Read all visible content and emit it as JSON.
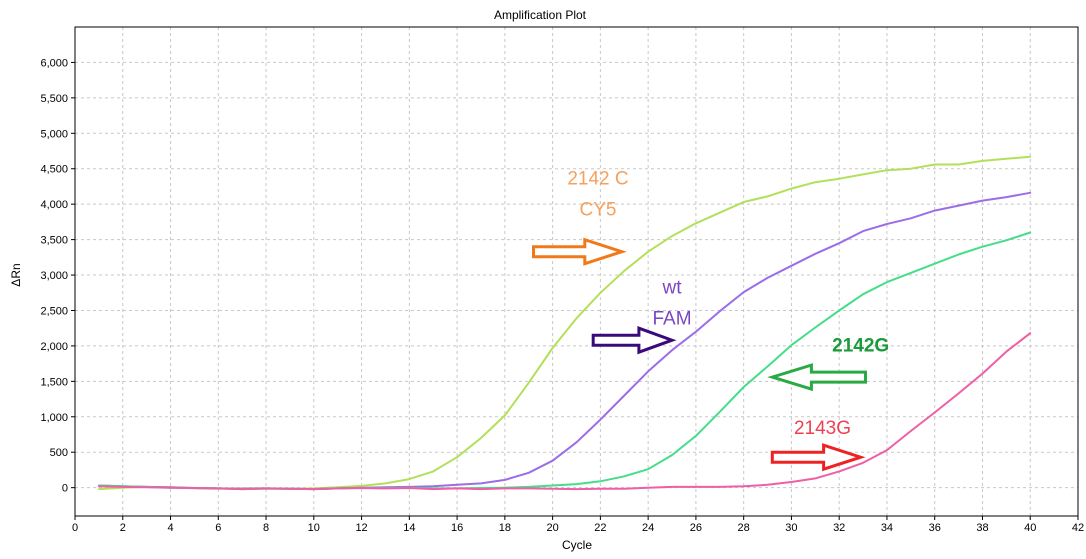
{
  "chart_data": {
    "type": "line",
    "title": "Amplification Plot",
    "xlabel": "Cycle",
    "ylabel": "ΔRn",
    "xlim": [
      0,
      42
    ],
    "ylim": [
      -400,
      6500
    ],
    "x_ticks": [
      0,
      2,
      4,
      6,
      8,
      10,
      12,
      14,
      16,
      18,
      20,
      22,
      24,
      26,
      28,
      30,
      32,
      34,
      36,
      38,
      40,
      42
    ],
    "y_ticks": [
      0,
      500,
      1000,
      1500,
      2000,
      2500,
      3000,
      3500,
      4000,
      4500,
      5000,
      5500,
      6000
    ],
    "y_tick_labels": [
      "0",
      "500",
      "1,000",
      "1,500",
      "2,000",
      "2,500",
      "3,000",
      "3,500",
      "4,000",
      "4,500",
      "5,000",
      "5,500",
      "6,000"
    ],
    "grid": true,
    "x": [
      1,
      2,
      3,
      4,
      5,
      6,
      7,
      8,
      9,
      10,
      11,
      12,
      13,
      14,
      15,
      16,
      17,
      18,
      19,
      20,
      21,
      22,
      23,
      24,
      25,
      26,
      27,
      28,
      29,
      30,
      31,
      32,
      33,
      34,
      35,
      36,
      37,
      38,
      39,
      40
    ],
    "series": [
      {
        "color": "#b2e05a",
        "values": [
          -20,
          0,
          10,
          5,
          -10,
          -15,
          -10,
          -10,
          -15,
          -10,
          5,
          25,
          60,
          120,
          230,
          430,
          700,
          1020,
          1480,
          1970,
          2390,
          2750,
          3060,
          3330,
          3550,
          3730,
          3880,
          4030,
          4110,
          4220,
          4310,
          4360,
          4420,
          4480,
          4500,
          4560,
          4560,
          4610,
          4640,
          4670
        ]
      },
      {
        "color": "#9b6de8",
        "values": [
          30,
          20,
          10,
          5,
          -5,
          -10,
          -15,
          -10,
          -15,
          -20,
          -10,
          0,
          5,
          10,
          20,
          40,
          60,
          110,
          210,
          380,
          640,
          960,
          1300,
          1640,
          1940,
          2200,
          2490,
          2760,
          2960,
          3130,
          3300,
          3450,
          3620,
          3720,
          3800,
          3910,
          3980,
          4050,
          4100,
          4160
        ]
      },
      {
        "color": "#44dd88",
        "values": [
          30,
          20,
          10,
          0,
          -5,
          -10,
          -20,
          -15,
          -15,
          -20,
          -10,
          -5,
          -5,
          0,
          -10,
          -10,
          -5,
          0,
          10,
          30,
          50,
          90,
          160,
          260,
          460,
          730,
          1070,
          1420,
          1710,
          2010,
          2260,
          2500,
          2730,
          2900,
          3030,
          3160,
          3290,
          3400,
          3490,
          3600
        ]
      },
      {
        "color": "#ee5fa6",
        "values": [
          20,
          10,
          5,
          0,
          -5,
          -10,
          -20,
          -10,
          -15,
          -20,
          -10,
          -5,
          -10,
          -5,
          -20,
          -10,
          -20,
          -10,
          -10,
          -15,
          -20,
          -15,
          -15,
          0,
          10,
          10,
          10,
          20,
          40,
          80,
          130,
          230,
          350,
          530,
          800,
          1060,
          1330,
          1610,
          1920,
          2180
        ]
      }
    ],
    "annotations": [
      {
        "lines": [
          "2142 C",
          "CY5"
        ],
        "color": "#f5a15e",
        "bold": false,
        "arrow_direction": "right",
        "arrow_color": "#f07a1a",
        "text_at": [
          21.9,
          4280
        ],
        "arrow_from": [
          19.2,
          3330
        ],
        "arrow_to": [
          22.9,
          3330
        ]
      },
      {
        "lines": [
          "wt",
          "FAM"
        ],
        "color": "#7a45c4",
        "bold": false,
        "arrow_direction": "right",
        "arrow_color": "#3a0a7a",
        "text_at": [
          25.0,
          2740
        ],
        "arrow_from": [
          21.7,
          2080
        ],
        "arrow_to": [
          25.0,
          2080
        ]
      },
      {
        "lines": [
          "2142G"
        ],
        "color": "#1a9a3a",
        "bold": true,
        "arrow_direction": "left",
        "arrow_color": "#2aaa44",
        "text_at": [
          32.9,
          1920
        ],
        "arrow_from": [
          33.1,
          1560
        ],
        "arrow_to": [
          29.2,
          1560
        ]
      },
      {
        "lines": [
          "2143G"
        ],
        "color": "#ef3f52",
        "bold": false,
        "arrow_direction": "right",
        "arrow_color": "#ee2222",
        "text_at": [
          31.3,
          760
        ],
        "arrow_from": [
          29.2,
          430
        ],
        "arrow_to": [
          32.9,
          430
        ]
      }
    ]
  }
}
